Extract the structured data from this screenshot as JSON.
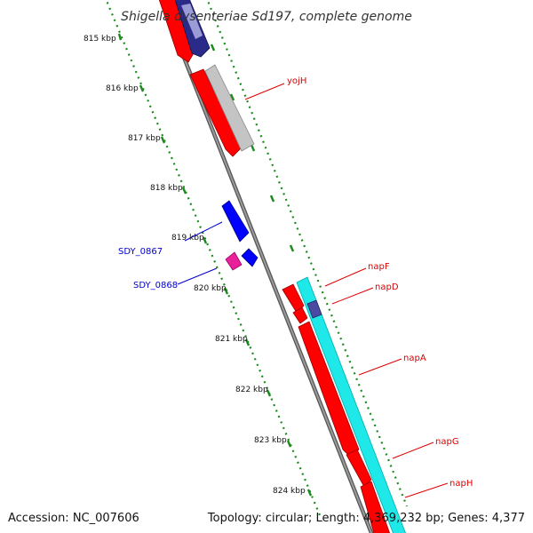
{
  "title": "Shigella dysenteriae Sd197, complete genome",
  "footer": {
    "accession": "Accession: NC_007606",
    "topology": "Topology: circular; Length: 4,369,232 bp; Genes: 4,377"
  },
  "ticks": [
    "815 kbp",
    "816 kbp",
    "817 kbp",
    "818 kbp",
    "819 kbp",
    "820 kbp",
    "821 kbp",
    "822 kbp",
    "823 kbp",
    "824 kbp"
  ],
  "gene_labels": {
    "right": [
      "yojH",
      "napF",
      "napD",
      "napA",
      "napG",
      "napH"
    ],
    "left": [
      "SDY_0867",
      "SDY_0868"
    ]
  },
  "colors": {
    "forward_gene": "#ff0000",
    "reverse_gene": "#00ffff",
    "navy_gene": "#20207a",
    "gray_gene": "#c0c0c0",
    "blue_gene": "#0000ff",
    "pink_gene": "#e8219b",
    "backbone": "#808080",
    "ruler": "#008000",
    "label_right": "#dd0000",
    "label_left": "#0000cc"
  }
}
